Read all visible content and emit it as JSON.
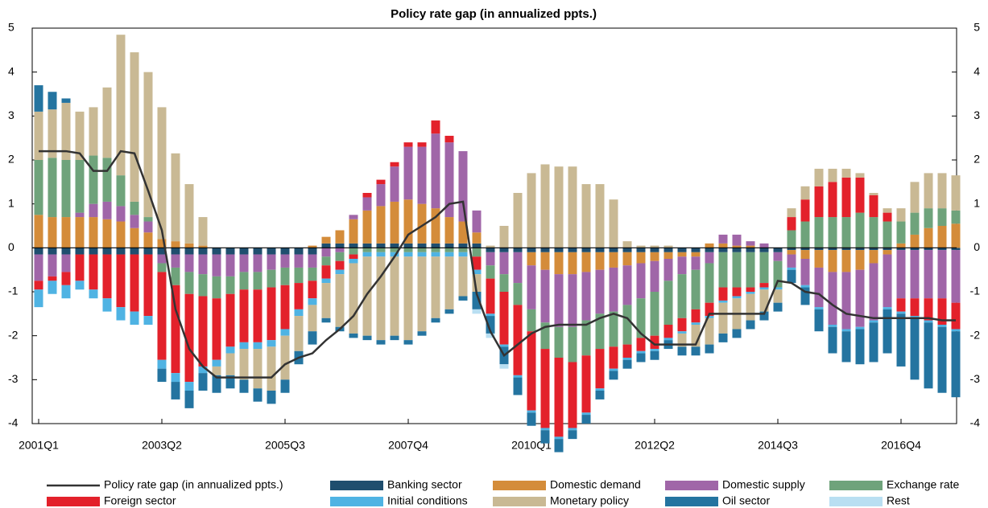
{
  "chart_data": {
    "type": "bar",
    "title": "Policy rate gap (in annualized ppts.)",
    "categories": [
      "2001Q1",
      null,
      null,
      null,
      null,
      null,
      null,
      null,
      null,
      "2003Q2",
      null,
      null,
      null,
      null,
      null,
      null,
      null,
      null,
      "2005Q3",
      null,
      null,
      null,
      null,
      null,
      null,
      null,
      null,
      "2007Q4",
      null,
      null,
      null,
      null,
      null,
      null,
      null,
      null,
      "2010Q1",
      null,
      null,
      null,
      null,
      null,
      null,
      null,
      null,
      "2012Q2",
      null,
      null,
      null,
      null,
      null,
      null,
      null,
      null,
      "2014Q3",
      null,
      null,
      null,
      null,
      null,
      null,
      null,
      null,
      "2016Q4",
      null,
      null,
      null,
      null
    ],
    "ylim": [
      -4,
      5
    ],
    "yticks": [
      -4,
      -3,
      -2,
      -1,
      0,
      1,
      2,
      3,
      4,
      5
    ],
    "y2lim": [
      -4,
      5
    ],
    "y2ticks": [
      -4,
      -3,
      -2,
      -1,
      0,
      1,
      2,
      3,
      4,
      5
    ],
    "series": [
      {
        "name": "Policy rate gap (in annualized ppts.)",
        "type": "line",
        "color": "#333333",
        "values": [
          2.2,
          2.2,
          2.2,
          2.15,
          1.75,
          1.75,
          2.2,
          2.15,
          1.3,
          0.4,
          -1.4,
          -2.3,
          -2.7,
          -2.95,
          -2.95,
          -2.95,
          -2.95,
          -2.95,
          -2.65,
          -2.5,
          -2.4,
          -2.1,
          -1.85,
          -1.55,
          -1.05,
          -0.65,
          -0.2,
          0.3,
          0.5,
          0.7,
          1.0,
          1.05,
          -1.05,
          -1.9,
          -2.45,
          -2.2,
          -1.95,
          -1.8,
          -1.75,
          -1.75,
          -1.75,
          -1.6,
          -1.5,
          -1.6,
          -1.95,
          -2.2,
          -2.2,
          -2.2,
          -2.2,
          -1.5,
          -1.5,
          -1.5,
          -1.5,
          -1.5,
          -0.75,
          -0.8,
          -1.0,
          -1.05,
          -1.3,
          -1.5,
          -1.55,
          -1.6,
          -1.6,
          -1.6,
          -1.6,
          -1.6,
          -1.65,
          -1.65
        ]
      },
      {
        "name": "Banking sector",
        "color": "#1f4e6e",
        "values": [
          -0.15,
          -0.15,
          -0.15,
          -0.15,
          -0.15,
          -0.15,
          -0.15,
          -0.15,
          -0.15,
          -0.15,
          -0.15,
          -0.15,
          -0.15,
          -0.15,
          -0.15,
          -0.15,
          -0.15,
          -0.15,
          -0.15,
          -0.15,
          -0.15,
          0.1,
          0.1,
          0.1,
          0.1,
          0.1,
          0.1,
          0.1,
          0.1,
          0.1,
          0.1,
          0.1,
          0.1,
          -0.1,
          -0.1,
          -0.1,
          -0.1,
          -0.1,
          -0.1,
          -0.1,
          -0.1,
          -0.1,
          -0.1,
          -0.1,
          -0.1,
          -0.1,
          -0.1,
          -0.1,
          -0.1,
          -0.1,
          -0.1,
          -0.1,
          -0.1,
          -0.1,
          -0.1,
          -0.05,
          -0.05,
          -0.05,
          -0.05,
          -0.05,
          -0.05,
          -0.05,
          -0.05,
          -0.05,
          -0.05,
          -0.05,
          -0.05,
          -0.05
        ]
      },
      {
        "name": "Domestic demand",
        "color": "#d48c3a",
        "values": [
          0.75,
          0.7,
          0.7,
          0.7,
          0.7,
          0.65,
          0.6,
          0.45,
          0.35,
          0.2,
          0.15,
          0.1,
          0.05,
          0,
          0,
          0,
          0,
          0,
          0,
          0,
          0.05,
          0.15,
          0.3,
          0.55,
          0.75,
          0.85,
          0.95,
          1.0,
          0.9,
          0.8,
          0.6,
          0.5,
          0.25,
          0,
          0,
          0,
          -0.3,
          -0.4,
          -0.5,
          -0.5,
          -0.45,
          -0.4,
          -0.35,
          -0.3,
          -0.25,
          -0.2,
          -0.15,
          -0.1,
          -0.1,
          0.1,
          0.1,
          0.05,
          0.05,
          0,
          0,
          -0.1,
          -0.2,
          -0.4,
          -0.5,
          -0.5,
          -0.45,
          -0.3,
          -0.1,
          0.1,
          0.3,
          0.45,
          0.5,
          0.55
        ]
      },
      {
        "name": "Domestic supply",
        "color": "#a066a8",
        "values": [
          -0.6,
          -0.5,
          -0.4,
          0.1,
          0.3,
          0.4,
          0.35,
          0.3,
          0.25,
          -0.2,
          -0.3,
          -0.4,
          -0.45,
          -0.5,
          -0.5,
          -0.4,
          -0.4,
          -0.35,
          -0.3,
          -0.3,
          -0.3,
          -0.2,
          -0.1,
          0.1,
          0.3,
          0.5,
          0.8,
          1.2,
          1.3,
          1.7,
          1.7,
          1.6,
          0.5,
          -0.3,
          -0.5,
          -0.7,
          -1.0,
          -1.2,
          -1.2,
          -1.2,
          -1.1,
          -1.0,
          -1.0,
          -0.9,
          -0.8,
          -0.7,
          -0.5,
          -0.4,
          -0.3,
          -0.25,
          0.2,
          0.25,
          0.1,
          0.1,
          -0.2,
          -0.3,
          -0.6,
          -0.9,
          -1.2,
          -1.3,
          -1.3,
          -1.3,
          -1.2,
          -1.1,
          -1.1,
          -1.1,
          -1.1,
          -1.2
        ]
      },
      {
        "name": "Exchange rate",
        "color": "#6fa37b",
        "values": [
          1.25,
          1.35,
          1.3,
          1.2,
          1.1,
          1.0,
          0.7,
          0.3,
          0.1,
          -0.2,
          -0.4,
          -0.5,
          -0.5,
          -0.5,
          -0.4,
          -0.4,
          -0.4,
          -0.4,
          -0.4,
          -0.35,
          -0.3,
          -0.2,
          -0.2,
          -0.15,
          -0.1,
          -0.1,
          -0.1,
          -0.1,
          -0.1,
          -0.1,
          -0.1,
          -0.1,
          -0.2,
          -0.3,
          -0.4,
          -0.5,
          -0.5,
          -0.6,
          -0.7,
          -0.8,
          -0.8,
          -0.8,
          -0.8,
          -0.9,
          -0.9,
          -1.0,
          -1.0,
          -1.0,
          -0.9,
          -0.9,
          -0.8,
          -0.8,
          -0.8,
          -0.7,
          -0.6,
          0.4,
          0.6,
          0.7,
          0.7,
          0.7,
          0.8,
          0.7,
          0.6,
          0.5,
          0.5,
          0.45,
          0.4,
          0.3
        ]
      },
      {
        "name": "Foreign sector",
        "color": "#e3212b",
        "values": [
          -0.2,
          -0.1,
          -0.3,
          -0.6,
          -0.8,
          -1.0,
          -1.2,
          -1.3,
          -1.4,
          -2.0,
          -2.0,
          -2.0,
          -1.6,
          -1.4,
          -1.2,
          -1.2,
          -1.2,
          -1.2,
          -1.0,
          -0.6,
          -0.4,
          -0.3,
          -0.2,
          -0.1,
          0.1,
          0.1,
          0.1,
          0.1,
          0.1,
          0.3,
          0.15,
          0,
          -0.3,
          -0.8,
          -1.2,
          -1.6,
          -1.8,
          -1.8,
          -1.8,
          -1.5,
          -1.3,
          -0.9,
          -0.5,
          -0.3,
          -0.3,
          -0.3,
          -0.3,
          -0.3,
          -0.3,
          -0.3,
          -0.3,
          -0.2,
          -0.1,
          -0.1,
          0,
          0.3,
          0.5,
          0.7,
          0.8,
          0.9,
          0.8,
          0.5,
          0.2,
          -0.3,
          -0.4,
          -0.5,
          -0.6,
          -0.6
        ]
      },
      {
        "name": "Initial conditions",
        "color": "#4fb3e3",
        "values": [
          -0.4,
          -0.3,
          -0.3,
          -0.2,
          -0.2,
          -0.3,
          -0.3,
          -0.3,
          -0.2,
          -0.2,
          -0.2,
          -0.2,
          -0.15,
          -0.15,
          -0.15,
          -0.15,
          -0.15,
          -0.15,
          -0.15,
          -0.15,
          -0.15,
          -0.1,
          -0.1,
          -0.1,
          -0.1,
          -0.1,
          -0.1,
          -0.1,
          -0.1,
          -0.1,
          -0.1,
          -0.1,
          -0.1,
          -0.05,
          -0.05,
          -0.05,
          -0.05,
          -0.05,
          -0.05,
          -0.05,
          -0.05,
          -0.05,
          -0.05,
          -0.05,
          -0.05,
          -0.05,
          -0.05,
          -0.05,
          -0.05,
          -0.05,
          -0.05,
          -0.05,
          -0.05,
          -0.05,
          -0.05,
          -0.05,
          -0.05,
          -0.05,
          -0.05,
          -0.05,
          -0.05,
          -0.05,
          -0.05,
          -0.05,
          -0.05,
          -0.05,
          -0.05,
          -0.05
        ]
      },
      {
        "name": "Monetary policy",
        "color": "#c9b994",
        "values": [
          1.1,
          1.1,
          1.3,
          1.1,
          1.1,
          1.6,
          3.2,
          3.4,
          3.3,
          3.0,
          2.0,
          1.35,
          0.65,
          -0.2,
          -0.5,
          -0.7,
          -0.9,
          -1.0,
          -1.0,
          -0.8,
          -0.6,
          -0.8,
          -1.2,
          -1.6,
          -1.8,
          -1.9,
          -1.8,
          -1.9,
          -1.7,
          -1.4,
          -1.2,
          -0.9,
          -0.4,
          0.05,
          0.5,
          1.25,
          1.7,
          1.9,
          1.85,
          1.85,
          1.45,
          1.45,
          1.1,
          0.15,
          0.05,
          0.05,
          0.05,
          -0.3,
          -0.5,
          -0.6,
          -0.7,
          -0.7,
          -0.6,
          -0.5,
          -0.3,
          0.2,
          0.3,
          0.4,
          0.3,
          0.2,
          0.1,
          0.05,
          0.1,
          0.3,
          0.7,
          0.8,
          0.8,
          0.8
        ]
      },
      {
        "name": "Oil sector",
        "color": "#2474a0",
        "values": [
          0.6,
          0.4,
          0.1,
          0,
          0,
          0,
          0,
          0,
          0,
          -0.3,
          -0.4,
          -0.4,
          -0.4,
          -0.4,
          -0.3,
          -0.3,
          -0.3,
          -0.3,
          -0.3,
          -0.3,
          -0.3,
          -0.1,
          -0.1,
          -0.1,
          -0.1,
          -0.1,
          -0.1,
          -0.1,
          -0.1,
          -0.1,
          -0.1,
          -0.1,
          -0.4,
          -0.4,
          -0.4,
          -0.4,
          -0.3,
          -0.3,
          -0.3,
          -0.2,
          -0.2,
          -0.2,
          -0.2,
          -0.2,
          -0.2,
          -0.2,
          -0.2,
          -0.2,
          -0.2,
          -0.2,
          -0.2,
          -0.2,
          -0.2,
          -0.2,
          -0.2,
          -0.3,
          -0.4,
          -0.5,
          -0.6,
          -0.7,
          -0.8,
          -0.9,
          -1.0,
          -1.2,
          -1.4,
          -1.5,
          -1.5,
          -1.5
        ]
      },
      {
        "name": "Rest",
        "color": "#b9dff2",
        "values": [
          0,
          0,
          0,
          0,
          0,
          0,
          0,
          0,
          0,
          0,
          0,
          0,
          0,
          0,
          0,
          0,
          0,
          0,
          0,
          0,
          0,
          0,
          0,
          0,
          0,
          0,
          0,
          0,
          0,
          0,
          0,
          0,
          -0.1,
          -0.1,
          -0.1,
          0,
          0,
          0,
          0,
          0,
          0,
          0,
          0,
          0,
          0,
          0,
          0,
          0,
          0,
          0,
          0,
          0,
          0,
          0,
          0,
          0,
          0,
          0,
          0,
          0,
          0,
          0,
          0,
          0,
          0,
          0,
          0,
          0
        ]
      }
    ]
  }
}
